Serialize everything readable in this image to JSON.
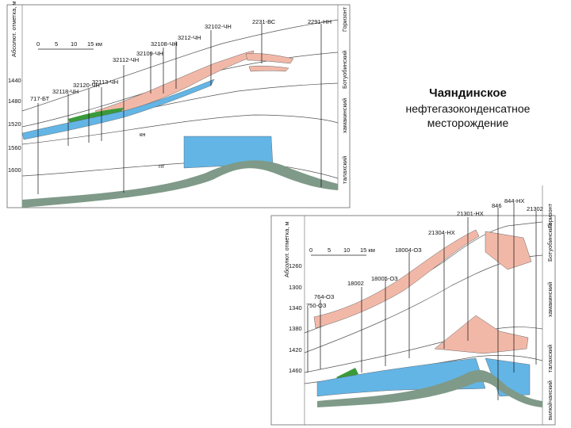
{
  "title": "Чаяндинское",
  "subtitle_line1": "нефтегазоконденсатное",
  "subtitle_line2": "месторождение",
  "colors": {
    "gas": "#f2b8a7",
    "oil": "#3a9a3a",
    "water": "#63b5e5",
    "basement": "#7f9a88",
    "line": "#333333"
  },
  "section1": {
    "axis_title": "Абсолют. отметка, м",
    "horizon_header": "Горизонт",
    "scale": [
      "0",
      "5",
      "10",
      "15 км"
    ],
    "depths": [
      "1440",
      "1480",
      "1520",
      "1560",
      "1600"
    ],
    "wells": [
      "717-БТ",
      "32118-ЧН",
      "32120-ЧН",
      "32113-ЧН",
      "32112-ЧН",
      "32109-ЧН",
      "32108-ЧН",
      "3212-ЧН",
      "32102-ЧН",
      "2231-ВС",
      "2291-НН"
    ],
    "horizons": [
      "Ботуобинский",
      "хамакинский",
      "талахский"
    ],
    "unit_labels": [
      "кн",
      "пт"
    ]
  },
  "section2": {
    "axis_title": "Абсолют. отметка, м",
    "horizon_header": "Горизонт",
    "scale": [
      "0",
      "5",
      "10",
      "15 км"
    ],
    "depths": [
      "1260",
      "1300",
      "1340",
      "1380",
      "1420",
      "1460"
    ],
    "wells": [
      "750-ОЗ",
      "764-ОЗ",
      "18002",
      "18005-ОЗ",
      "18004-ОЗ",
      "21304-НХ",
      "21301-НХ",
      "846",
      "844-НХ",
      "21302"
    ],
    "horizons": [
      "Ботуобинский",
      "хамакинский",
      "талахский",
      "вилюйчанский"
    ]
  }
}
